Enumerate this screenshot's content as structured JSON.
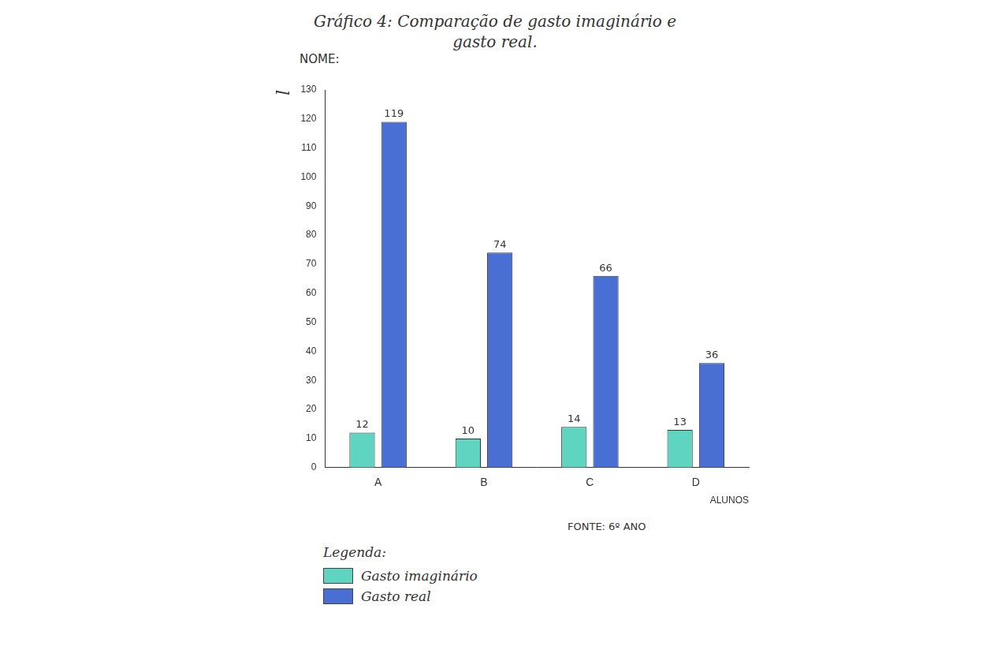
{
  "chart_data": {
    "type": "bar",
    "title": "Gráfico 4: Comparação de gasto imaginário e gasto real.",
    "annotations": [
      "NOME:",
      "FONTE: 6º ANO",
      "Legenda:"
    ],
    "x_label": "ALUNOS",
    "y_label": "l",
    "categories": [
      "A",
      "B",
      "C",
      "D"
    ],
    "series": [
      {
        "name": "Gasto imaginário",
        "color": "#5fd4c0",
        "values": [
          12,
          10,
          14,
          13
        ]
      },
      {
        "name": "Gasto real",
        "color": "#4a6fd4",
        "values": [
          119,
          74,
          66,
          36
        ]
      }
    ],
    "ylim": [
      0,
      130
    ],
    "yticks": [
      0,
      10,
      20,
      30,
      40,
      50,
      60,
      70,
      80,
      90,
      100,
      110,
      120,
      130
    ],
    "grid": false,
    "legend": "bottom-left",
    "data_labels": true
  }
}
